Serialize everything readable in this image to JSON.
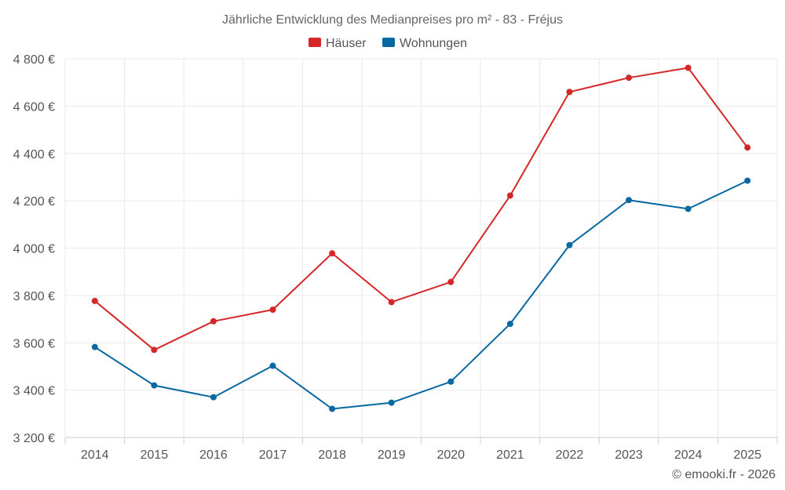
{
  "chart_data": {
    "type": "line",
    "title": "Jährliche Entwicklung des Medianpreises pro m² - 83 - Fréjus",
    "categories": [
      "2014",
      "2015",
      "2016",
      "2017",
      "2018",
      "2019",
      "2020",
      "2021",
      "2022",
      "2023",
      "2024",
      "2025"
    ],
    "series": [
      {
        "name": "Häuser",
        "color": "#d62728",
        "values": [
          3777,
          3570,
          3691,
          3740,
          3978,
          3772,
          3857,
          4222,
          4660,
          4720,
          4762,
          4425
        ]
      },
      {
        "name": "Wohnungen",
        "color": "#0868a0",
        "values": [
          3582,
          3420,
          3370,
          3503,
          3321,
          3347,
          3436,
          3680,
          4013,
          4203,
          4166,
          4285
        ]
      }
    ],
    "ylim": [
      3200,
      4800
    ],
    "yticks": [
      3200,
      3400,
      3600,
      3800,
      4000,
      4200,
      4400,
      4600,
      4800
    ],
    "ytick_labels": [
      "3 200 €",
      "3 400 €",
      "3 600 €",
      "3 800 €",
      "4 000 €",
      "4 200 €",
      "4 400 €",
      "4 600 €",
      "4 800 €"
    ],
    "xlabel": "",
    "ylabel": "",
    "grid": true,
    "legend": "top-center"
  },
  "credit": "© emooki.fr - 2026"
}
